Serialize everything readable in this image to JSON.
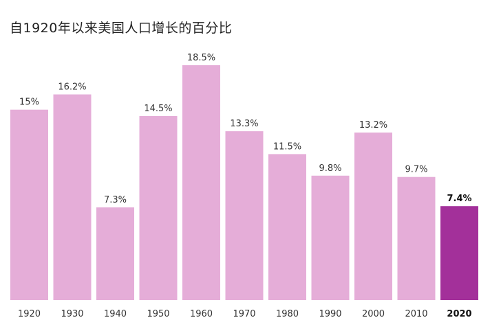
{
  "chart_data": {
    "type": "bar",
    "title": "自1920年以来美国人口增长的百分比",
    "categories": [
      "1920",
      "1930",
      "1940",
      "1950",
      "1960",
      "1970",
      "1980",
      "1990",
      "2000",
      "2010",
      "2020"
    ],
    "values": [
      15,
      16.2,
      7.3,
      14.5,
      18.5,
      13.3,
      11.5,
      9.8,
      13.2,
      9.7,
      7.4
    ],
    "value_labels": [
      "15%",
      "16.2%",
      "7.3%",
      "14.5%",
      "18.5%",
      "13.3%",
      "11.5%",
      "9.8%",
      "13.2%",
      "9.7%",
      "7.4%"
    ],
    "highlight_index": 10,
    "xlabel": "",
    "ylabel": "",
    "ylim": [
      0,
      18.5
    ],
    "grid": false,
    "colors": {
      "bar": "#e5add8",
      "highlight": "#a3309a",
      "text": "#333333",
      "highlight_text": "#111111"
    }
  }
}
